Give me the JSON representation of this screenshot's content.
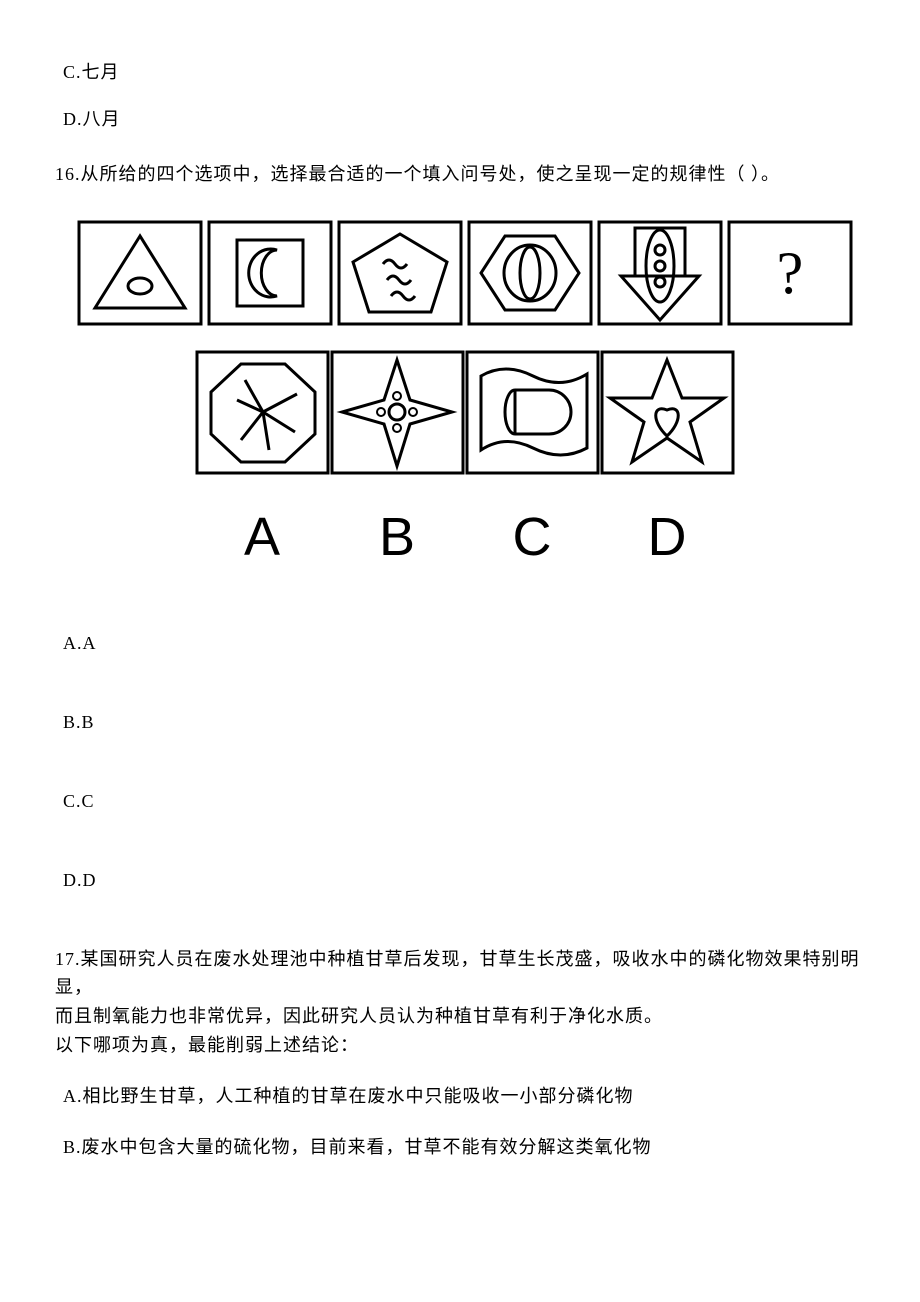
{
  "q15_opts": {
    "c": "C.七月",
    "d": "D.八月"
  },
  "q16": {
    "stem": "16.从所给的四个选项中，选择最合适的一个填入问号处，使之呈现一定的规律性（  ）。",
    "opts": {
      "a": "A.A",
      "b": "B.B",
      "c": "C.C",
      "d": "D.D"
    },
    "figure": {
      "stroke": "#000000",
      "stroke_w": 3,
      "bg": "#ffffff",
      "row1_w": 780,
      "row1_h": 110,
      "row2_w": 540,
      "row2_h": 125,
      "labels": [
        "A",
        "B",
        "C",
        "D"
      ],
      "label_font": "Arial, Helvetica, sans-serif",
      "label_size": 54,
      "qmark": "?"
    }
  },
  "q17": {
    "stem1": "17.某国研究人员在废水处理池中种植甘草后发现，甘草生长茂盛，吸收水中的磷化物效果特别明显，",
    "stem2": "而且制氧能力也非常优异，因此研究人员认为种植甘草有利于净化水质。",
    "stem3": "以下哪项为真，最能削弱上述结论：",
    "opts": {
      "a": "A.相比野生甘草，人工种植的甘草在废水中只能吸收一小部分磷化物",
      "b": "B.废水中包含大量的硫化物，目前来看，甘草不能有效分解这类氧化物"
    }
  }
}
